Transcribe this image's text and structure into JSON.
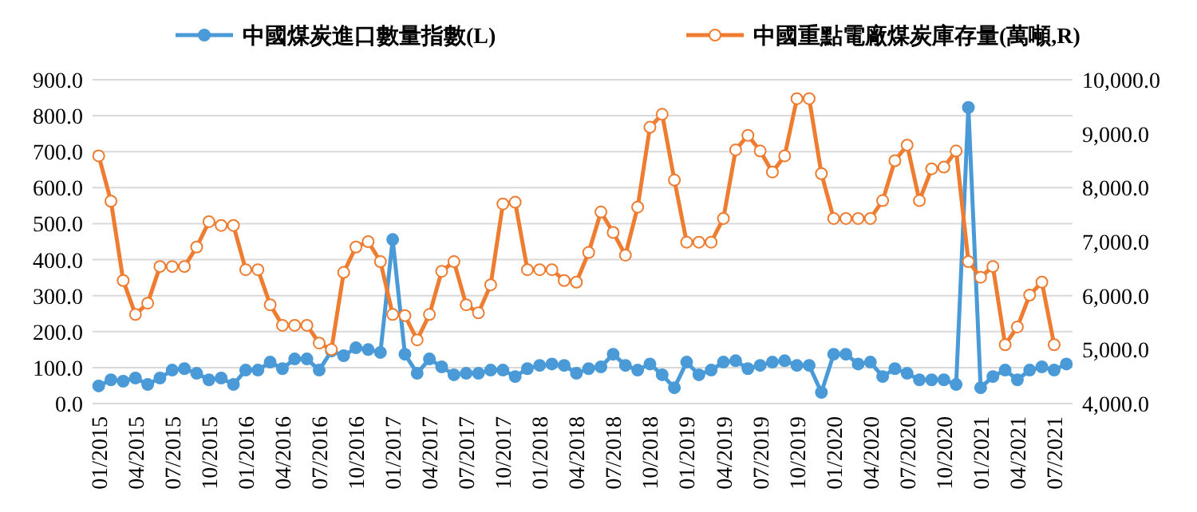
{
  "chart_data": {
    "type": "line",
    "categories": [
      "01/2015",
      null,
      null,
      "04/2015",
      null,
      null,
      "07/2015",
      null,
      null,
      "10/2015",
      null,
      null,
      "01/2016",
      null,
      null,
      "04/2016",
      null,
      null,
      "07/2016",
      null,
      null,
      "10/2016",
      null,
      null,
      "01/2017",
      null,
      null,
      "04/2017",
      null,
      null,
      "07/2017",
      null,
      null,
      "10/2017",
      null,
      null,
      "01/2018",
      null,
      null,
      "04/2018",
      null,
      null,
      "07/2018",
      null,
      null,
      "10/2018",
      null,
      null,
      "01/2019",
      null,
      null,
      "04/2019",
      null,
      null,
      "07/2019",
      null,
      null,
      "10/2019",
      null,
      null,
      "01/2020",
      null,
      null,
      "04/2020",
      null,
      null,
      "07/2020",
      null,
      null,
      "10/2020",
      null,
      null,
      "01/2021",
      null,
      null,
      "04/2021",
      null,
      null,
      "07/2021",
      null
    ],
    "series": [
      {
        "name": "中國煤炭進口數量指數(L)",
        "color": "#4a9ad8",
        "axis": "y",
        "values": [
          49,
          66,
          62,
          71,
          53,
          71,
          93,
          97,
          84,
          66,
          71,
          53,
          93,
          93,
          115,
          97,
          124,
          124,
          93,
          146,
          133,
          155,
          150,
          142,
          456,
          137,
          84,
          124,
          102,
          80,
          84,
          84,
          93,
          93,
          75,
          97,
          106,
          110,
          106,
          84,
          97,
          102,
          137,
          106,
          93,
          110,
          80,
          44,
          115,
          80,
          93,
          115,
          119,
          97,
          106,
          115,
          119,
          106,
          106,
          31,
          137,
          137,
          110,
          115,
          75,
          97,
          84,
          66,
          66,
          66,
          53,
          823,
          44,
          75,
          93,
          66,
          93,
          102,
          93,
          110
        ]
      },
      {
        "name": "中國重點電廠煤炭庫存量(萬噸,R)",
        "color": "#ee7d31",
        "axis": "y2",
        "values": [
          8590,
          7750,
          6280,
          5650,
          5860,
          6540,
          6540,
          6540,
          6900,
          7370,
          7300,
          7300,
          6480,
          6480,
          5830,
          5450,
          5450,
          5450,
          5120,
          5000,
          6430,
          6900,
          7000,
          6630,
          5650,
          5630,
          5180,
          5650,
          6450,
          6630,
          5830,
          5680,
          6200,
          7700,
          7730,
          6480,
          6480,
          6480,
          6280,
          6250,
          6800,
          7550,
          7170,
          6750,
          7640,
          9120,
          9360,
          8140,
          6990,
          6990,
          6990,
          7430,
          8700,
          8970,
          8680,
          8290,
          8590,
          9650,
          9650,
          8260,
          7430,
          7430,
          7430,
          7430,
          7760,
          8500,
          8790,
          7760,
          8350,
          8380,
          8680,
          6630,
          6340,
          6540,
          5090,
          5420,
          6010,
          6250,
          5090,
          null
        ]
      }
    ],
    "ylim": [
      0,
      900
    ],
    "yticks": [
      {
        "value": 0,
        "label": "0.0"
      },
      {
        "value": 100,
        "label": "100.0"
      },
      {
        "value": 200,
        "label": "200.0"
      },
      {
        "value": 300,
        "label": "300.0"
      },
      {
        "value": 400,
        "label": "400.0"
      },
      {
        "value": 500,
        "label": "500.0"
      },
      {
        "value": 600,
        "label": "600.0"
      },
      {
        "value": 700,
        "label": "700.0"
      },
      {
        "value": 800,
        "label": "800.0"
      },
      {
        "value": 900,
        "label": "900.0"
      }
    ],
    "y2lim": [
      4000,
      10000
    ],
    "y2ticks": [
      {
        "value": 4000,
        "label": "4,000.0"
      },
      {
        "value": 5000,
        "label": "5,000.0"
      },
      {
        "value": 6000,
        "label": "6,000.0"
      },
      {
        "value": 7000,
        "label": "7,000.0"
      },
      {
        "value": 8000,
        "label": "8,000.0"
      },
      {
        "value": 9000,
        "label": "9,000.0"
      },
      {
        "value": 10000,
        "label": "10,000.0"
      }
    ],
    "grid": "y",
    "legend": "top",
    "marker": "circle",
    "line_style": "solid"
  }
}
